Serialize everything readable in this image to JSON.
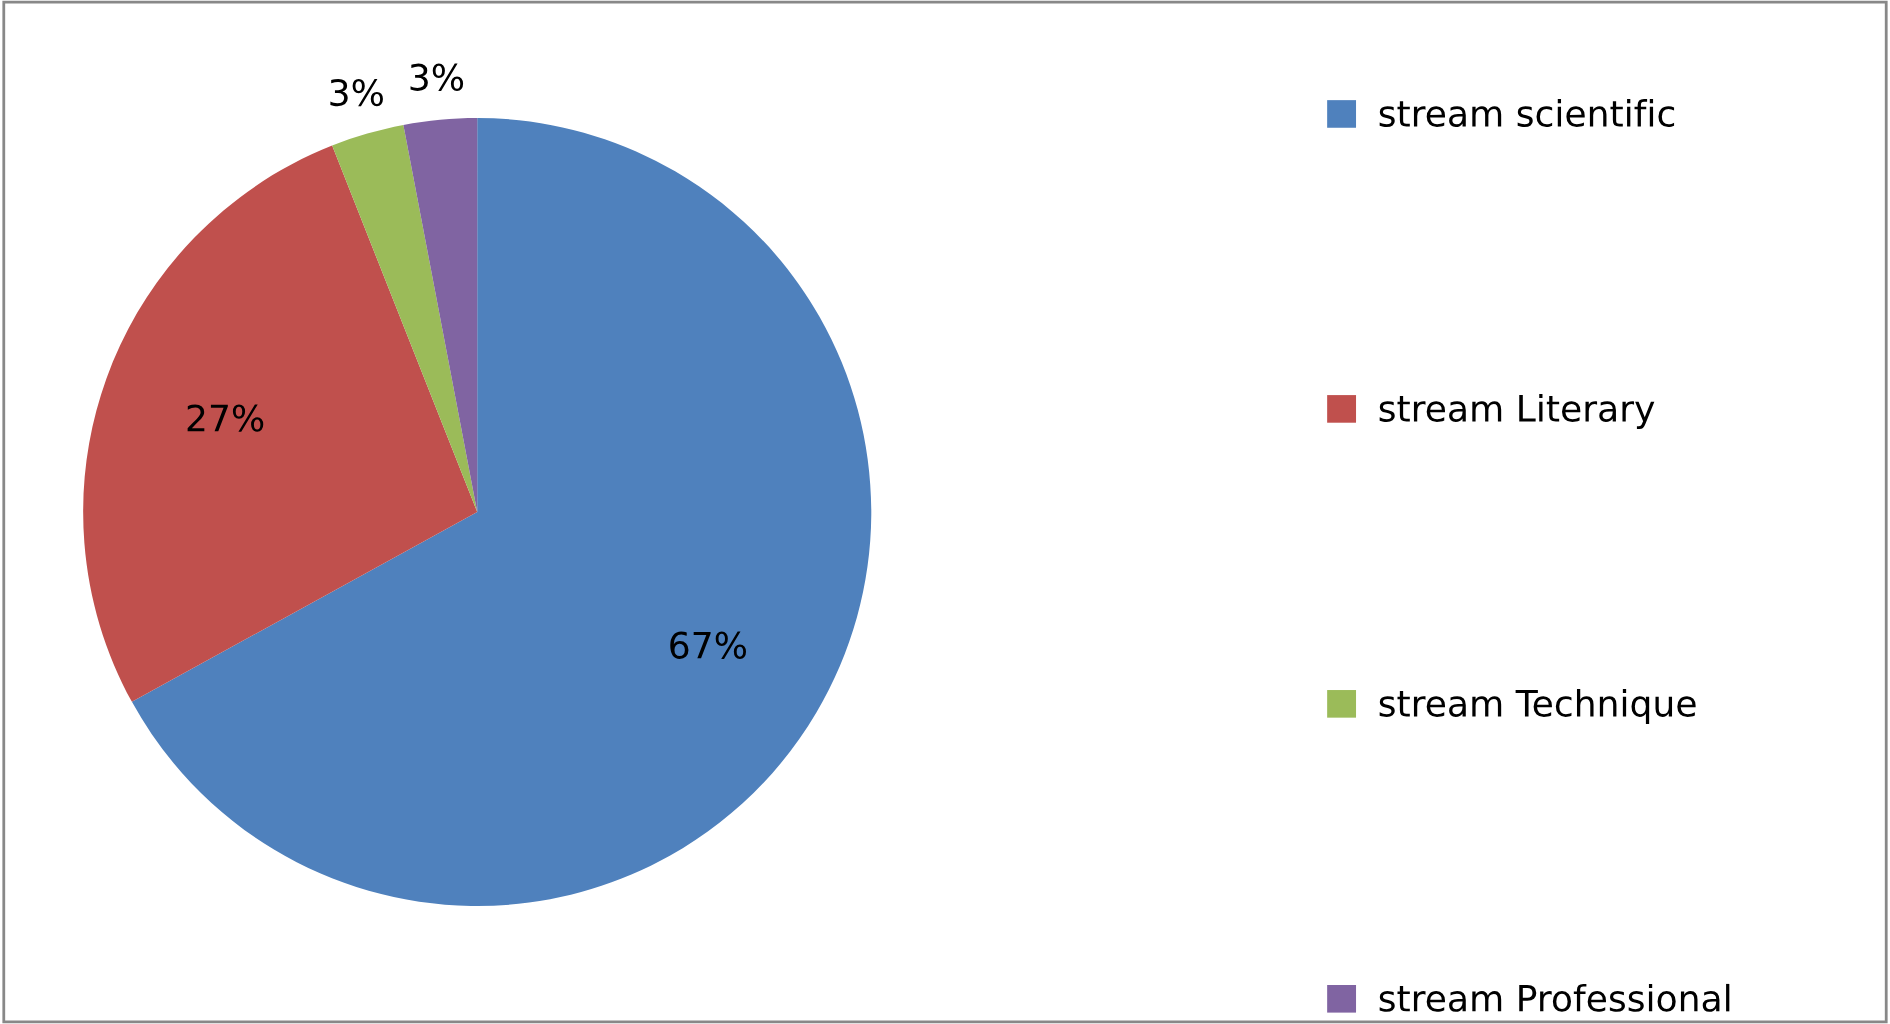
{
  "chart_data": {
    "type": "pie",
    "categories": [
      "stream scientific",
      "stream Literary",
      "stream Technique",
      "stream Professional"
    ],
    "values": [
      67,
      27,
      3,
      3
    ],
    "colors": [
      "#4f81bd",
      "#c0504d",
      "#9bbb59",
      "#8064a2"
    ],
    "value_labels": [
      "67%",
      "27%",
      "3%",
      "3%"
    ],
    "legend": "right"
  }
}
